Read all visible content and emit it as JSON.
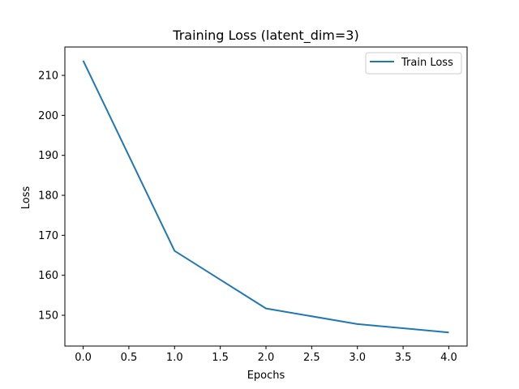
{
  "chart_data": {
    "type": "line",
    "title": "Training Loss (latent_dim=3)",
    "xlabel": "Epochs",
    "ylabel": "Loss",
    "x": [
      0,
      1,
      2,
      3,
      4
    ],
    "series": [
      {
        "name": "Train Loss",
        "color": "#1f77b4",
        "values": [
          213.7,
          166.1,
          151.7,
          147.8,
          145.7
        ]
      }
    ],
    "xlim": [
      -0.2,
      4.2
    ],
    "ylim": [
      142.3,
      217.1
    ],
    "x_ticks": [
      {
        "value": 0.0,
        "label": "0.0"
      },
      {
        "value": 0.5,
        "label": "0.5"
      },
      {
        "value": 1.0,
        "label": "1.0"
      },
      {
        "value": 1.5,
        "label": "1.5"
      },
      {
        "value": 2.0,
        "label": "2.0"
      },
      {
        "value": 2.5,
        "label": "2.5"
      },
      {
        "value": 3.0,
        "label": "3.0"
      },
      {
        "value": 3.5,
        "label": "3.5"
      },
      {
        "value": 4.0,
        "label": "4.0"
      }
    ],
    "y_ticks": [
      {
        "value": 150,
        "label": "150"
      },
      {
        "value": 160,
        "label": "160"
      },
      {
        "value": 170,
        "label": "170"
      },
      {
        "value": 180,
        "label": "180"
      },
      {
        "value": 190,
        "label": "190"
      },
      {
        "value": 200,
        "label": "200"
      },
      {
        "value": 210,
        "label": "210"
      }
    ],
    "grid": false,
    "legend_position": "top-right"
  }
}
